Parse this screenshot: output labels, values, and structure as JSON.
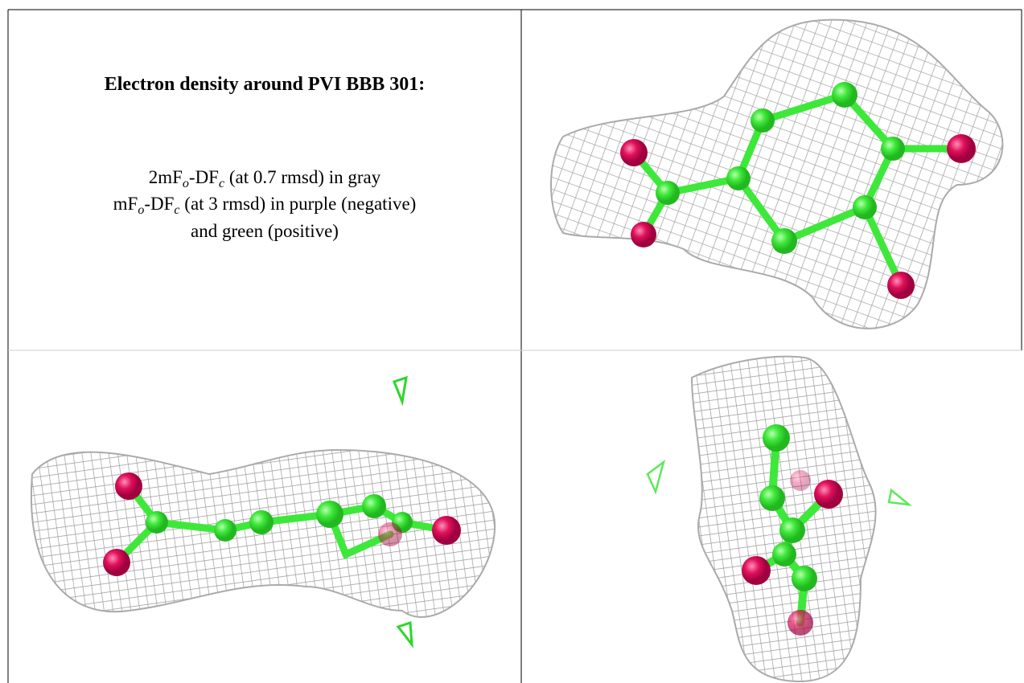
{
  "panel_text": {
    "title": "Electron density around PVI BBB 301:",
    "lines": [
      [
        "2mF",
        "o",
        "-DF",
        "c",
        " (at 0.7 rmsd) in gray"
      ],
      [
        "mF",
        "o",
        "-DF",
        "c",
        " (at 3 rmsd) in purple (negative)"
      ],
      [
        "and green (positive)"
      ]
    ]
  }
}
